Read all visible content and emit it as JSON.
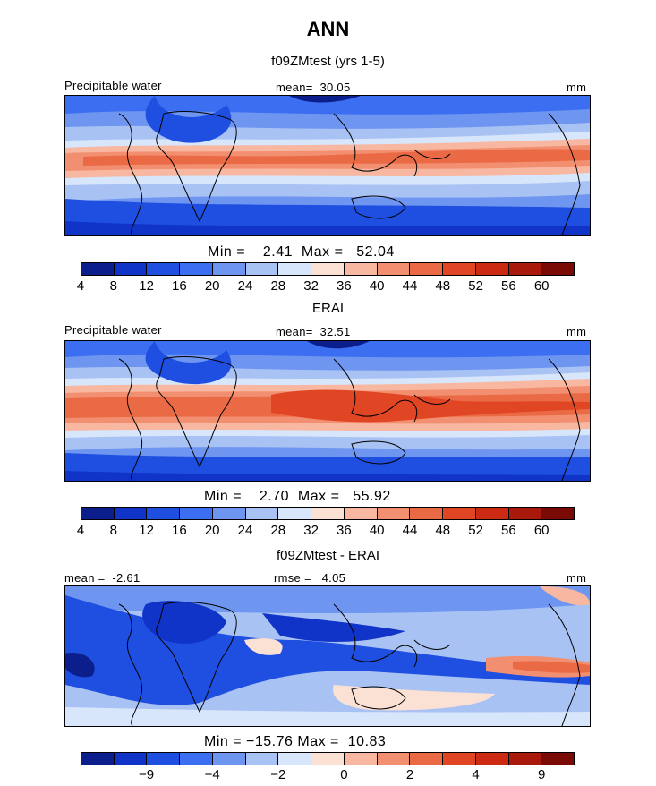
{
  "header": {
    "title": "ANN"
  },
  "chart_data": [
    {
      "type": "heatmap",
      "title": "f09ZMtest (yrs 1-5)",
      "variable": "Precipitable water",
      "mean_text": "mean=",
      "mean": "30.05",
      "units": "mm",
      "min_label": "Min =",
      "min": "2.41",
      "max_label": "Max =",
      "max": "52.04",
      "colorbar_ticks": [
        "4",
        "8",
        "12",
        "16",
        "20",
        "24",
        "28",
        "32",
        "36",
        "40",
        "44",
        "48",
        "52",
        "56",
        "60"
      ],
      "colors": [
        "#0b1e8c",
        "#1033c8",
        "#1f4fe0",
        "#3b6ef0",
        "#6e95f0",
        "#a9c2f4",
        "#d8e6fb",
        "#fbe0d4",
        "#f7b7a0",
        "#f28f71",
        "#eb6a46",
        "#e04524",
        "#cc2a12",
        "#a8180b",
        "#7a0a05"
      ]
    },
    {
      "type": "heatmap",
      "title": "ERAI",
      "variable": "Precipitable water",
      "mean_text": "mean=",
      "mean": "32.51",
      "units": "mm",
      "min_label": "Min =",
      "min": "2.70",
      "max_label": "Max =",
      "max": "55.92",
      "colorbar_ticks": [
        "4",
        "8",
        "12",
        "16",
        "20",
        "24",
        "28",
        "32",
        "36",
        "40",
        "44",
        "48",
        "52",
        "56",
        "60"
      ],
      "colors": [
        "#0b1e8c",
        "#1033c8",
        "#1f4fe0",
        "#3b6ef0",
        "#6e95f0",
        "#a9c2f4",
        "#d8e6fb",
        "#fbe0d4",
        "#f7b7a0",
        "#f28f71",
        "#eb6a46",
        "#e04524",
        "#cc2a12",
        "#a8180b",
        "#7a0a05"
      ]
    },
    {
      "type": "heatmap",
      "title": "f09ZMtest - ERAI",
      "mean_text": "mean =",
      "mean": "-2.61",
      "rmse_text": "rmse =",
      "rmse": "4.05",
      "units": "mm",
      "min_label": "Min =",
      "min": "−15.76",
      "max_label": "Max =",
      "max": "10.83",
      "colorbar_ticks": [
        "−9",
        "−4",
        "−2",
        "0",
        "2",
        "4",
        "9"
      ],
      "colors": [
        "#0b1e8c",
        "#1033c8",
        "#1f4fe0",
        "#3b6ef0",
        "#6e95f0",
        "#a9c2f4",
        "#d8e6fb",
        "#fbe0d4",
        "#f7b7a0",
        "#f28f71",
        "#eb6a46",
        "#e04524",
        "#cc2a12",
        "#a8180b",
        "#7a0a05"
      ]
    }
  ]
}
